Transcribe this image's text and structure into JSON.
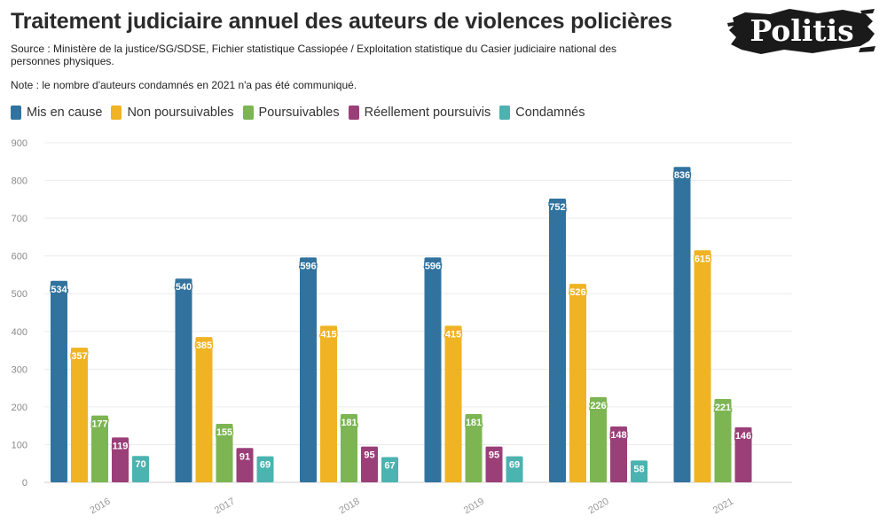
{
  "title": "Traitement judiciaire annuel des auteurs de violences policières",
  "source": "Source : Ministère de la justice/SG/SDSE, Fichier statistique Cassiopée / Exploitation statistique du Casier judiciaire national des personnes physiques.",
  "note": "Note : le nombre d'auteurs condamnés en 2021 n'a pas été communiqué.",
  "logo_text": "Politis",
  "colors": {
    "mis_en_cause": "#31739e",
    "non_poursuivables": "#f0b323",
    "poursuivables": "#7cb552",
    "reellement_poursuivis": "#9b3f78",
    "condamnes": "#4bb3b0"
  },
  "chart_data": {
    "type": "bar",
    "title": "Traitement judiciaire annuel des auteurs de violences policières",
    "xlabel": "",
    "ylabel": "",
    "categories": [
      "2016",
      "2017",
      "2018",
      "2019",
      "2020",
      "2021"
    ],
    "ylim": [
      0,
      900
    ],
    "yticks": [
      0,
      100,
      200,
      300,
      400,
      500,
      600,
      700,
      800,
      900
    ],
    "grid": true,
    "legend_position": "top-left",
    "series": [
      {
        "name": "Mis en cause",
        "color": "#31739e",
        "values": [
          534,
          540,
          596,
          596,
          752,
          836
        ]
      },
      {
        "name": "Non poursuivables",
        "color": "#f0b323",
        "values": [
          357,
          385,
          415,
          415,
          526,
          615
        ]
      },
      {
        "name": "Poursuivables",
        "color": "#7cb552",
        "values": [
          177,
          155,
          181,
          181,
          226,
          221
        ]
      },
      {
        "name": "Réellement poursuivis",
        "color": "#9b3f78",
        "values": [
          119,
          91,
          95,
          95,
          148,
          146
        ]
      },
      {
        "name": "Condamnés",
        "color": "#4bb3b0",
        "values": [
          70,
          69,
          67,
          69,
          58,
          null
        ]
      }
    ]
  }
}
